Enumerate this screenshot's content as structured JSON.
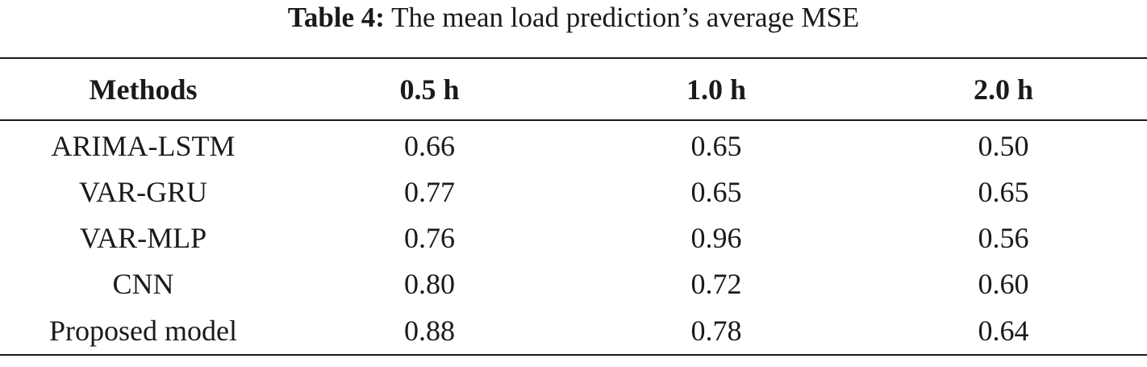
{
  "caption": {
    "label": "Table 4:",
    "text": "The mean load prediction’s average MSE"
  },
  "table": {
    "headers": [
      "Methods",
      "0.5 h",
      "1.0 h",
      "2.0 h"
    ],
    "rows": [
      [
        "ARIMA-LSTM",
        "0.66",
        "0.65",
        "0.50"
      ],
      [
        "VAR-GRU",
        "0.77",
        "0.65",
        "0.65"
      ],
      [
        "VAR-MLP",
        "0.76",
        "0.96",
        "0.56"
      ],
      [
        "CNN",
        "0.80",
        "0.72",
        "0.60"
      ],
      [
        "Proposed model",
        "0.88",
        "0.78",
        "0.64"
      ]
    ]
  }
}
